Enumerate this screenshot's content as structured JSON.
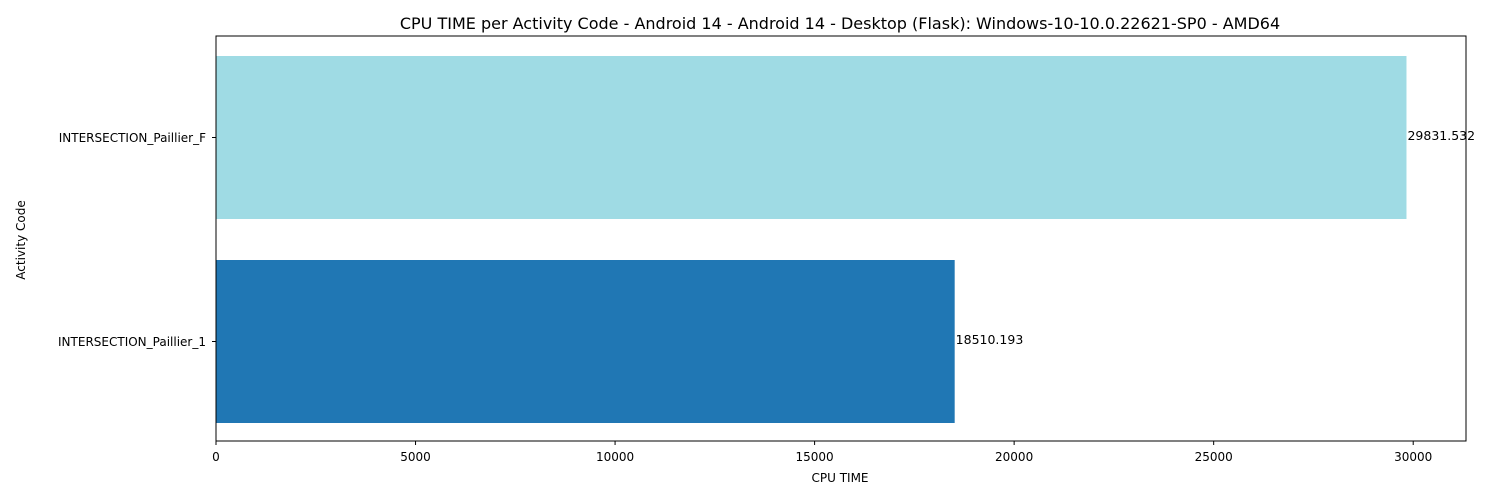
{
  "chart_data": {
    "type": "bar",
    "orientation": "horizontal",
    "title": "CPU TIME per Activity Code - Android 14 - Android 14 - Desktop (Flask): Windows-10-10.0.22621-SP0 - AMD64",
    "xlabel": "CPU TIME",
    "ylabel": "Activity Code",
    "categories": [
      "INTERSECTION_Paillier_F",
      "INTERSECTION_Paillier_1"
    ],
    "values": [
      29831.532,
      18510.193
    ],
    "value_labels": [
      "29831.532",
      "18510.193"
    ],
    "bar_colors": [
      "#9fdbe4",
      "#2077b4"
    ],
    "xlim": [
      0,
      31323
    ],
    "xticks": [
      0,
      5000,
      10000,
      15000,
      20000,
      25000,
      30000
    ],
    "xtick_labels": [
      "0",
      "5000",
      "10000",
      "15000",
      "20000",
      "25000",
      "30000"
    ],
    "grid": false,
    "legend": "none"
  }
}
